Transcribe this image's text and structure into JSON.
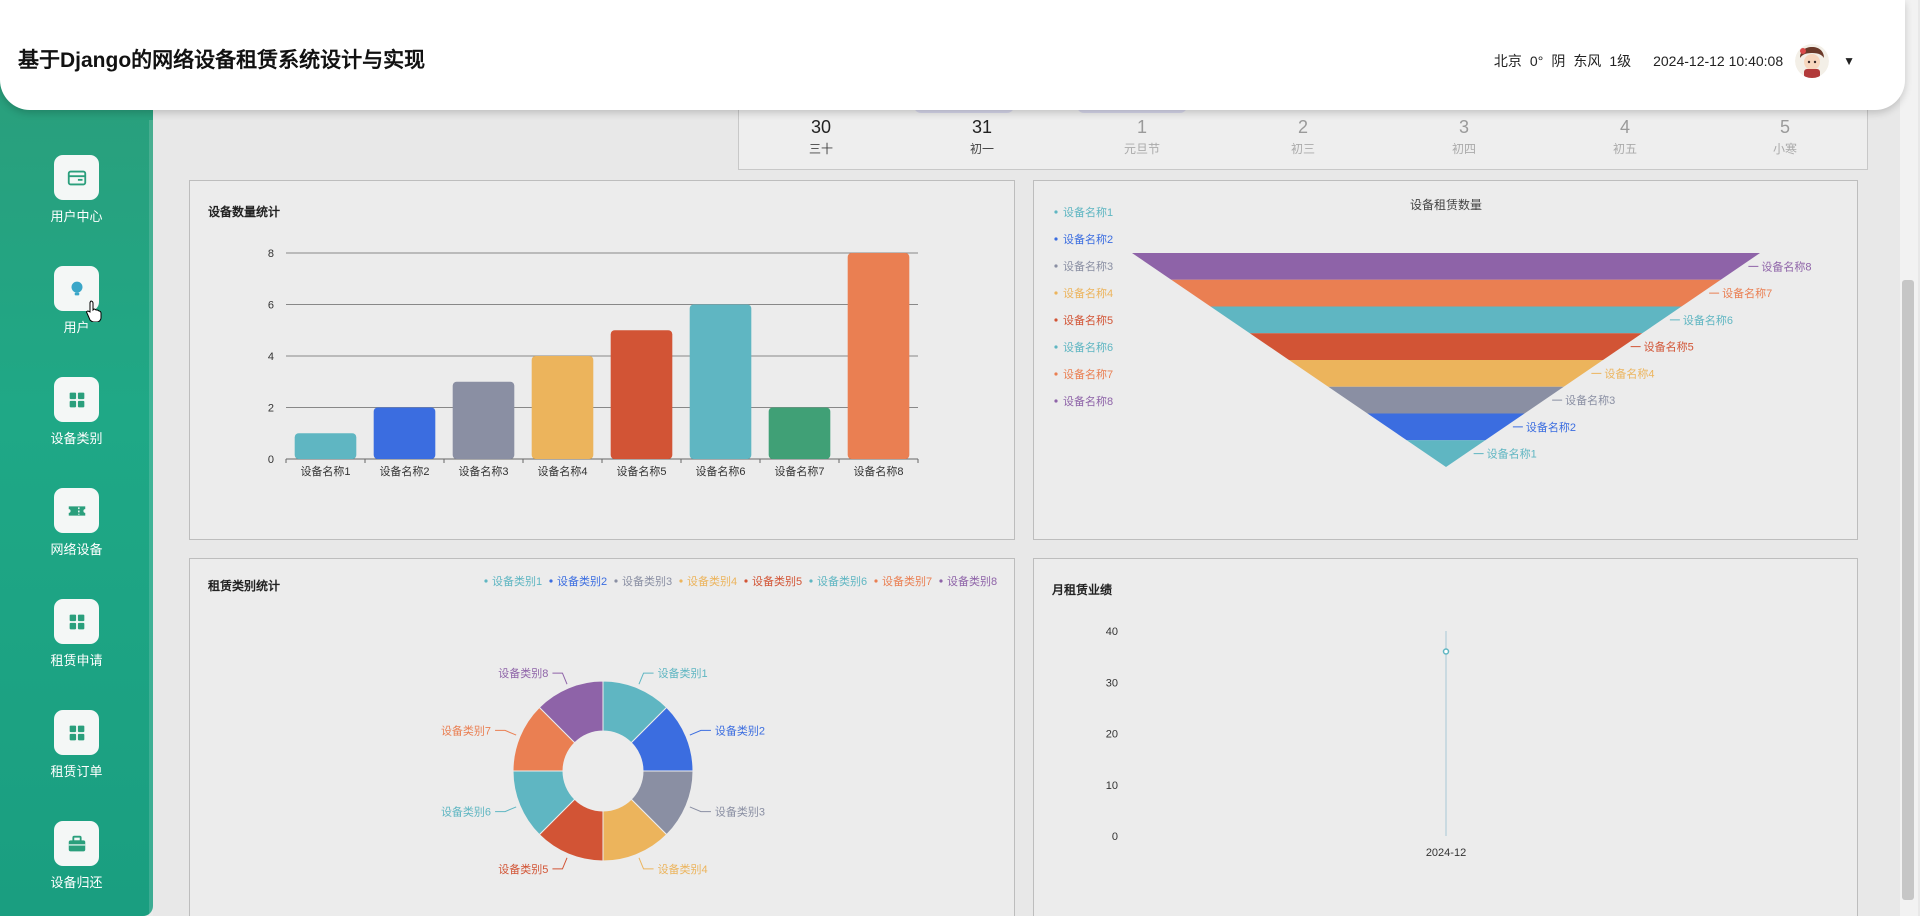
{
  "header": {
    "title": "基于Django的网络设备租赁系统设计与实现",
    "weather": {
      "city": "北京",
      "temp": "0°",
      "condition": "阴",
      "wind_dir": "东风",
      "wind_level": "1级"
    },
    "datetime": "2024-12-12 10:40:08",
    "user_menu_icon": "caret-down-icon"
  },
  "sidebar": {
    "items": [
      {
        "label": "用户中心",
        "icon": "card-icon"
      },
      {
        "label": "用户",
        "icon": "bulb-icon"
      },
      {
        "label": "设备类别",
        "icon": "grid-icon"
      },
      {
        "label": "网络设备",
        "icon": "ticket-icon"
      },
      {
        "label": "租赁申请",
        "icon": "grid-icon"
      },
      {
        "label": "租赁订单",
        "icon": "grid-icon"
      },
      {
        "label": "设备归还",
        "icon": "briefcase-icon"
      }
    ]
  },
  "calendar": {
    "days": [
      {
        "num": "30",
        "sub": "三十",
        "dim": false
      },
      {
        "num": "31",
        "sub": "初一",
        "dim": false
      },
      {
        "num": "1",
        "sub": "元旦节",
        "dim": true
      },
      {
        "num": "2",
        "sub": "初三",
        "dim": true
      },
      {
        "num": "3",
        "sub": "初四",
        "dim": true
      },
      {
        "num": "4",
        "sub": "初五",
        "dim": true
      },
      {
        "num": "5",
        "sub": "小寒",
        "dim": true
      }
    ]
  },
  "colors": {
    "palette": [
      "#5fb6c2",
      "#3b6de0",
      "#8a8fa3",
      "#ecb45c",
      "#d25435",
      "#5fb6c2",
      "#40a076",
      "#ea7f52",
      "#8e63a8"
    ],
    "sidebar": "#1fa886"
  },
  "chart_data": [
    {
      "type": "bar",
      "title": "设备数量统计",
      "categories": [
        "设备名称1",
        "设备名称2",
        "设备名称3",
        "设备名称4",
        "设备名称5",
        "设备名称6",
        "设备名称7",
        "设备名称8"
      ],
      "values": [
        1,
        2,
        3,
        4,
        5,
        6,
        2,
        8
      ],
      "colors": [
        "#5fb6c2",
        "#3b6de0",
        "#8a8fa3",
        "#ecb45c",
        "#d25435",
        "#5fb6c2",
        "#40a076",
        "#ea7f52"
      ],
      "ylim": [
        0,
        8
      ],
      "yticks": [
        0,
        2,
        4,
        6,
        8
      ],
      "grid": true
    },
    {
      "type": "funnel",
      "title": "设备租赁数量",
      "categories": [
        "设备名称1",
        "设备名称2",
        "设备名称3",
        "设备名称4",
        "设备名称5",
        "设备名称6",
        "设备名称7",
        "设备名称8"
      ],
      "values": [
        1,
        2,
        3,
        4,
        5,
        6,
        7,
        8
      ],
      "colors": [
        "#5fb6c2",
        "#3b6de0",
        "#8a8fa3",
        "#ecb45c",
        "#d25435",
        "#5fb6c2",
        "#ea7f52",
        "#8e63a8"
      ],
      "legend": "left"
    },
    {
      "type": "pie",
      "title": "租赁类别统计",
      "categories": [
        "设备类别1",
        "设备类别2",
        "设备类别3",
        "设备类别4",
        "设备类别5",
        "设备类别6",
        "设备类别7",
        "设备类别8"
      ],
      "values": [
        1,
        1,
        1,
        1,
        1,
        1,
        1,
        1
      ],
      "colors": [
        "#5fb6c2",
        "#3b6de0",
        "#8a8fa3",
        "#ecb45c",
        "#d25435",
        "#5fb6c2",
        "#ea7f52",
        "#8e63a8"
      ],
      "legend": "top-right",
      "donut": true
    },
    {
      "type": "line",
      "title": "月租赁业绩",
      "x": [
        "2024-12"
      ],
      "values": [
        36
      ],
      "ylim": [
        0,
        40
      ],
      "yticks": [
        0,
        10,
        20,
        30,
        40
      ],
      "color": "#5fb6c2"
    }
  ]
}
